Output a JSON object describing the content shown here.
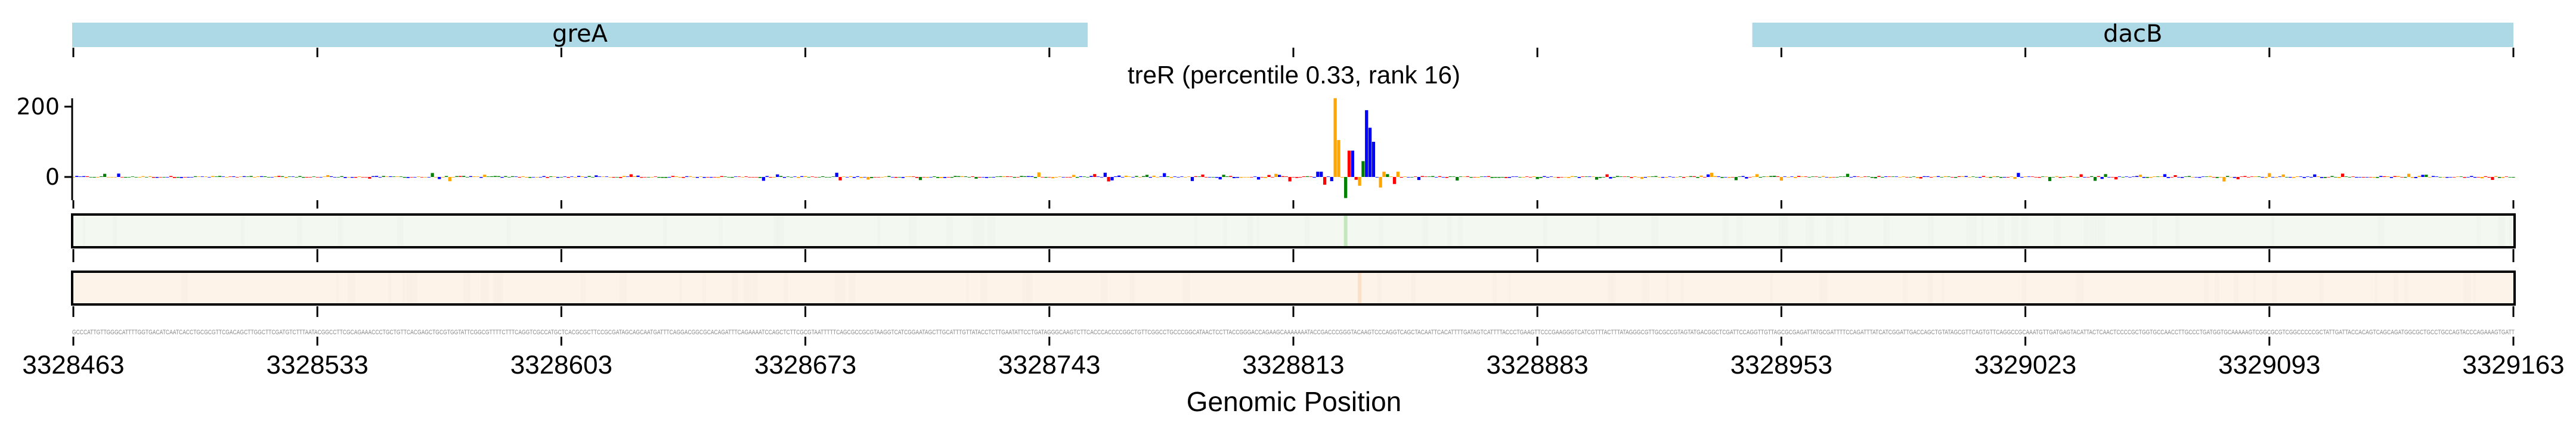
{
  "chart_data": {
    "type": "sequence-logo",
    "title": "treR (percentile 0.33, rank 16)",
    "xlabel": "Genomic Position",
    "ylabel": "",
    "xlim": [
      3328463,
      3329163
    ],
    "ylim": [
      -60,
      230
    ],
    "yticks": [
      {
        "value": 200,
        "label": "200"
      },
      {
        "value": 0,
        "label": "0"
      }
    ],
    "xticks": [
      {
        "value": 3328463,
        "label": "3328463"
      },
      {
        "value": 3328533,
        "label": "3328533"
      },
      {
        "value": 3328603,
        "label": "3328603"
      },
      {
        "value": 3328673,
        "label": "3328673"
      },
      {
        "value": 3328743,
        "label": "3328743"
      },
      {
        "value": 3328813,
        "label": "3328813"
      },
      {
        "value": 3328883,
        "label": "3328883"
      },
      {
        "value": 3328953,
        "label": "3328953"
      },
      {
        "value": 3329023,
        "label": "3329023"
      },
      {
        "value": 3329093,
        "label": "3329093"
      },
      {
        "value": 3329163,
        "label": "3329163"
      }
    ],
    "genes": [
      {
        "name": "greA",
        "start": 3328463,
        "end": 3328754,
        "color": "#add8e6"
      },
      {
        "name": "dacB",
        "start": 3328945,
        "end": 3329163,
        "color": "#add8e6"
      }
    ],
    "base_colors": {
      "A": "#ff0000",
      "C": "#0000ff",
      "G": "#ffa500",
      "T": "#008000"
    },
    "peaks": [
      {
        "position": 3328820,
        "base": "C",
        "value": 15
      },
      {
        "position": 3328821,
        "base": "C",
        "value": 15
      },
      {
        "position": 3328822,
        "base": "A",
        "value": -22
      },
      {
        "position": 3328824,
        "base": "C",
        "value": -12
      },
      {
        "position": 3328825,
        "base": "G",
        "value": 224
      },
      {
        "position": 3328826,
        "base": "G",
        "value": 105
      },
      {
        "position": 3328828,
        "base": "T",
        "value": -60
      },
      {
        "position": 3328829,
        "base": "A",
        "value": 75
      },
      {
        "position": 3328830,
        "base": "C",
        "value": 75
      },
      {
        "position": 3328831,
        "base": "A",
        "value": -8
      },
      {
        "position": 3328832,
        "base": "G",
        "value": -25
      },
      {
        "position": 3328833,
        "base": "T",
        "value": 45
      },
      {
        "position": 3328834,
        "base": "C",
        "value": 190
      },
      {
        "position": 3328835,
        "base": "C",
        "value": 140
      },
      {
        "position": 3328836,
        "base": "C",
        "value": 100
      },
      {
        "position": 3328838,
        "base": "G",
        "value": -30
      },
      {
        "position": 3328839,
        "base": "G",
        "value": 15
      },
      {
        "position": 3328840,
        "base": "T",
        "value": 8
      },
      {
        "position": 3328842,
        "base": "A",
        "value": -20
      },
      {
        "position": 3328843,
        "base": "G",
        "value": 15
      }
    ],
    "tracks": [
      {
        "name": "track-1",
        "fill": "#f3f9f0",
        "highlight_color": "#c6e6bf",
        "highlight_position": 3328828
      },
      {
        "name": "track-2",
        "fill": "#fdf3e8",
        "highlight_color": "#fae0c8",
        "highlight_position": 3328832
      }
    ],
    "sequence": "GCCCATTGTTGGGCATTTTGGTGACATCAATCACCTGCGCGTTCGACAGCTTGGCTTCGATGTCTTTAATACGGCCTTCGCAGAAACCCTGCTGTTCACGAGCTGCGTGGTATTCGGCGTTTTCTTTCAGGTCGCCATGCTCACGCGCTTCCGCGATAGCAGCAATGATTTCAGGACGGCGCACAGATTTCAGAAAATCCAGCTCTTCGCGTAATTTTTCAGCGCCGCGTAAGGTCATCGGAATAGCTTGCATTTGTTATACCTCTTGAATATTCCTGATAGGGCAAGTCTTCACCCACCCCGGCTGTTCGGCCTGCCCGGCATAACTCCTTACCGGGACCAGAAGCAAAAAAATACCGACCCGGGTACAAGTCCCAGGTCAGCTACAATTCACATTTTGATAGTCATTTTACCCTGAAGTTCCCGAAGGGTCATCGTTTACTTTATAGGGCGTTGCGCCGTAGTATGACGGCTCGATTCCAGGTTGTTAGCGCGAGATTATGCGATTTTCCAGATTTATCATCGGATTGACCAGCTGTATAGCGTTCAGTGTTCAGGCCGCAAATGTTGATGAGTACATTACTCAACTCCCCGCTGGTGCCAACCTTGCCCTGATGGTGCAAAAAGTCGGCGCGTCGGCCCCCGCTATTGATTACCACAGTCAGCAGATGGCGCTGCCTGCCAGTACCCAGAAAGTGATT"
  }
}
